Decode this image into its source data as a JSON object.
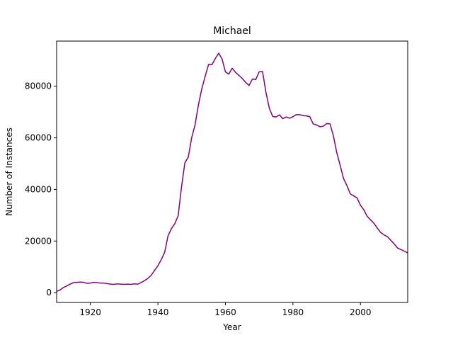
{
  "chart_data": {
    "type": "line",
    "title": "Michael",
    "xlabel": "Year",
    "ylabel": "Number of Instances",
    "xlim": [
      1910,
      2014
    ],
    "ylim": [
      -3800,
      97500
    ],
    "grid": false,
    "xticks": [
      1920,
      1940,
      1960,
      1980,
      2000
    ],
    "yticks": [
      0,
      20000,
      40000,
      60000,
      80000
    ],
    "series": [
      {
        "color": "#800080",
        "x": [
          1910,
          1911,
          1912,
          1913,
          1914,
          1915,
          1916,
          1917,
          1918,
          1919,
          1920,
          1921,
          1922,
          1923,
          1924,
          1925,
          1926,
          1927,
          1928,
          1929,
          1930,
          1931,
          1932,
          1933,
          1934,
          1935,
          1936,
          1937,
          1938,
          1939,
          1940,
          1941,
          1942,
          1943,
          1944,
          1945,
          1946,
          1947,
          1948,
          1949,
          1950,
          1951,
          1952,
          1953,
          1954,
          1955,
          1956,
          1957,
          1958,
          1959,
          1960,
          1961,
          1962,
          1963,
          1964,
          1965,
          1966,
          1967,
          1968,
          1969,
          1970,
          1971,
          1972,
          1973,
          1974,
          1975,
          1976,
          1977,
          1978,
          1979,
          1980,
          1981,
          1982,
          1983,
          1984,
          1985,
          1986,
          1987,
          1988,
          1989,
          1990,
          1991,
          1992,
          1993,
          1994,
          1995,
          1996,
          1997,
          1998,
          1999,
          2000,
          2001,
          2002,
          2003,
          2004,
          2005,
          2006,
          2007,
          2008,
          2009,
          2010,
          2011,
          2012,
          2013,
          2014
        ],
        "y": [
          500,
          1000,
          2000,
          2600,
          3300,
          3900,
          4000,
          4100,
          4000,
          3600,
          3700,
          4000,
          3900,
          3700,
          3700,
          3500,
          3300,
          3200,
          3400,
          3300,
          3200,
          3300,
          3200,
          3400,
          3300,
          3900,
          4600,
          5500,
          6700,
          8600,
          10400,
          12800,
          15600,
          22000,
          24800,
          26700,
          29800,
          41000,
          50400,
          52500,
          60000,
          65000,
          72700,
          79000,
          83800,
          88400,
          88300,
          90700,
          92800,
          90600,
          85600,
          84700,
          87000,
          85400,
          84200,
          83000,
          81500,
          80300,
          82800,
          82600,
          85600,
          85700,
          77700,
          71500,
          68300,
          68100,
          68900,
          67400,
          68100,
          67600,
          68200,
          69000,
          69000,
          68600,
          68500,
          68200,
          65400,
          65000,
          64300,
          64500,
          65500,
          65400,
          60700,
          54200,
          49300,
          44200,
          41500,
          38300,
          37500,
          36700,
          33900,
          32100,
          29600,
          28200,
          26900,
          25000,
          23300,
          22400,
          21700,
          20300,
          18900,
          17300,
          16700,
          16100,
          15400
        ]
      }
    ]
  }
}
